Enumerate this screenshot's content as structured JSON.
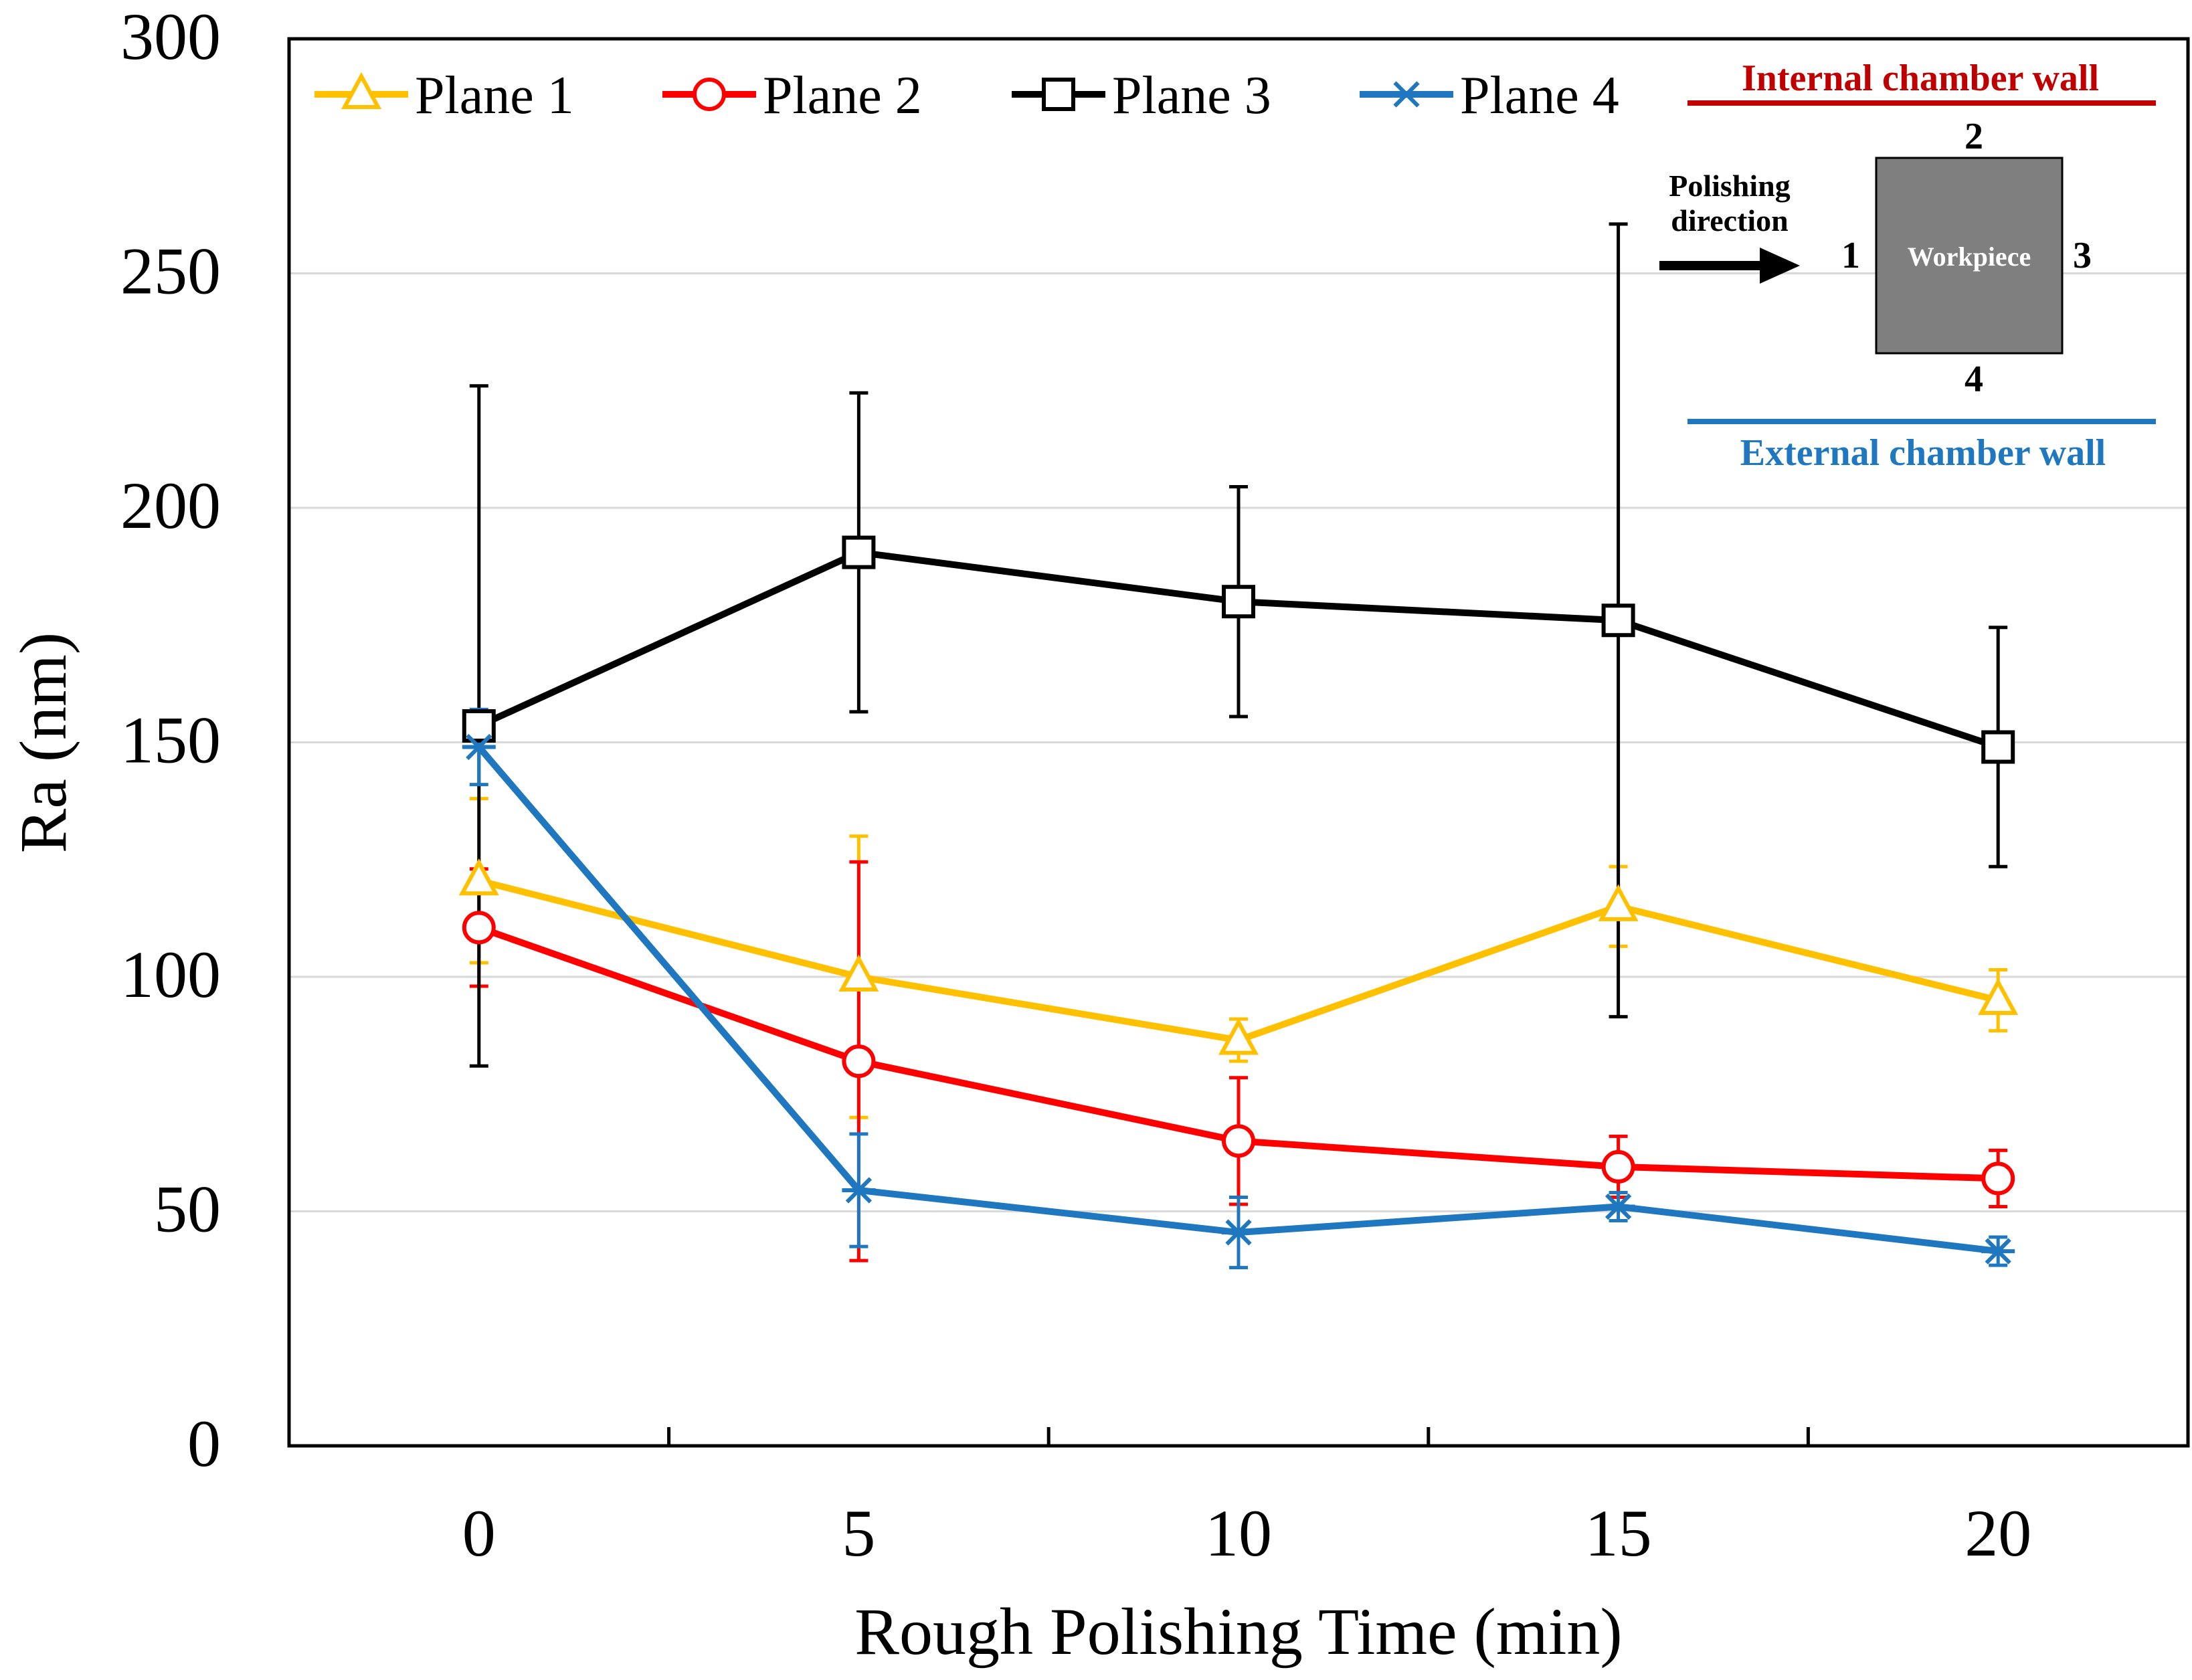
{
  "chart_data": {
    "type": "line",
    "title": "",
    "xlabel": "Rough Polishing Time (min)",
    "ylabel": "Ra (nm)",
    "xlim": [
      -2.5,
      22.5
    ],
    "ylim": [
      0,
      300
    ],
    "x_ticks": [
      "0",
      "5",
      "10",
      "15",
      "20"
    ],
    "y_ticks": [
      "0",
      "50",
      "100",
      "150",
      "200",
      "250",
      "300"
    ],
    "grid": "horizontal",
    "legend_position": "top",
    "x": [
      0,
      5,
      10,
      15,
      20
    ],
    "series": [
      {
        "name": "Plane 1",
        "color": "#FFC000",
        "marker": "triangle",
        "values": [
          120.5,
          100,
          86.5,
          115,
          95
        ],
        "errors": [
          17.5,
          30,
          4.5,
          8.5,
          6.5
        ]
      },
      {
        "name": "Plane 2",
        "color": "#FF0000",
        "marker": "circle",
        "values": [
          110.5,
          82,
          65,
          59.5,
          57
        ],
        "errors": [
          12.5,
          42.5,
          13.5,
          6.5,
          6
        ]
      },
      {
        "name": "Plane 3",
        "color": "#000000",
        "marker": "square",
        "values": [
          153.5,
          190.5,
          180,
          176,
          149
        ],
        "errors": [
          72.5,
          34,
          24.5,
          84.5,
          25.5
        ]
      },
      {
        "name": "Plane 4",
        "color": "#1F77C0",
        "marker": "asterisk",
        "values": [
          149,
          54.5,
          45.5,
          51,
          41.5
        ],
        "errors": [
          8,
          12,
          7.5,
          3,
          3
        ]
      }
    ],
    "inset": {
      "internal_wall_label": "Internal chamber wall",
      "external_wall_label": "External chamber wall",
      "polishing_label_line1": "Polishing",
      "polishing_label_line2": "direction",
      "workpiece_label": "Workpiece",
      "side_1": "1",
      "side_2": "2",
      "side_3": "3",
      "side_4": "4",
      "internal_color": "#C00000",
      "external_color": "#1F77C0",
      "workpiece_color": "#7F7F7F"
    }
  }
}
